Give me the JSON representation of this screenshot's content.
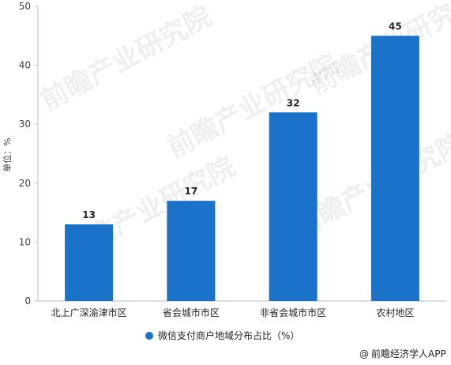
{
  "chart_data": {
    "type": "bar",
    "categories": [
      "北上广深渝津市区",
      "省会城市市区",
      "非省会城市市区",
      "农村地区"
    ],
    "series": [
      {
        "name": "微信支付商户地域分布占比（%）",
        "values": [
          13,
          17,
          32,
          45
        ],
        "color": "#1a73c8"
      }
    ],
    "ylabel": "单位：%",
    "xlabel": "",
    "ylim": [
      0,
      50
    ],
    "yticks": [
      0,
      10,
      20,
      30,
      40,
      50
    ],
    "grid": false,
    "legend_position": "bottom",
    "data_labels": true
  },
  "credit": {
    "icon": "at-sign-icon",
    "text": "前瞻经济学人APP"
  },
  "watermark": {
    "text": "前瞻产业研究院"
  }
}
